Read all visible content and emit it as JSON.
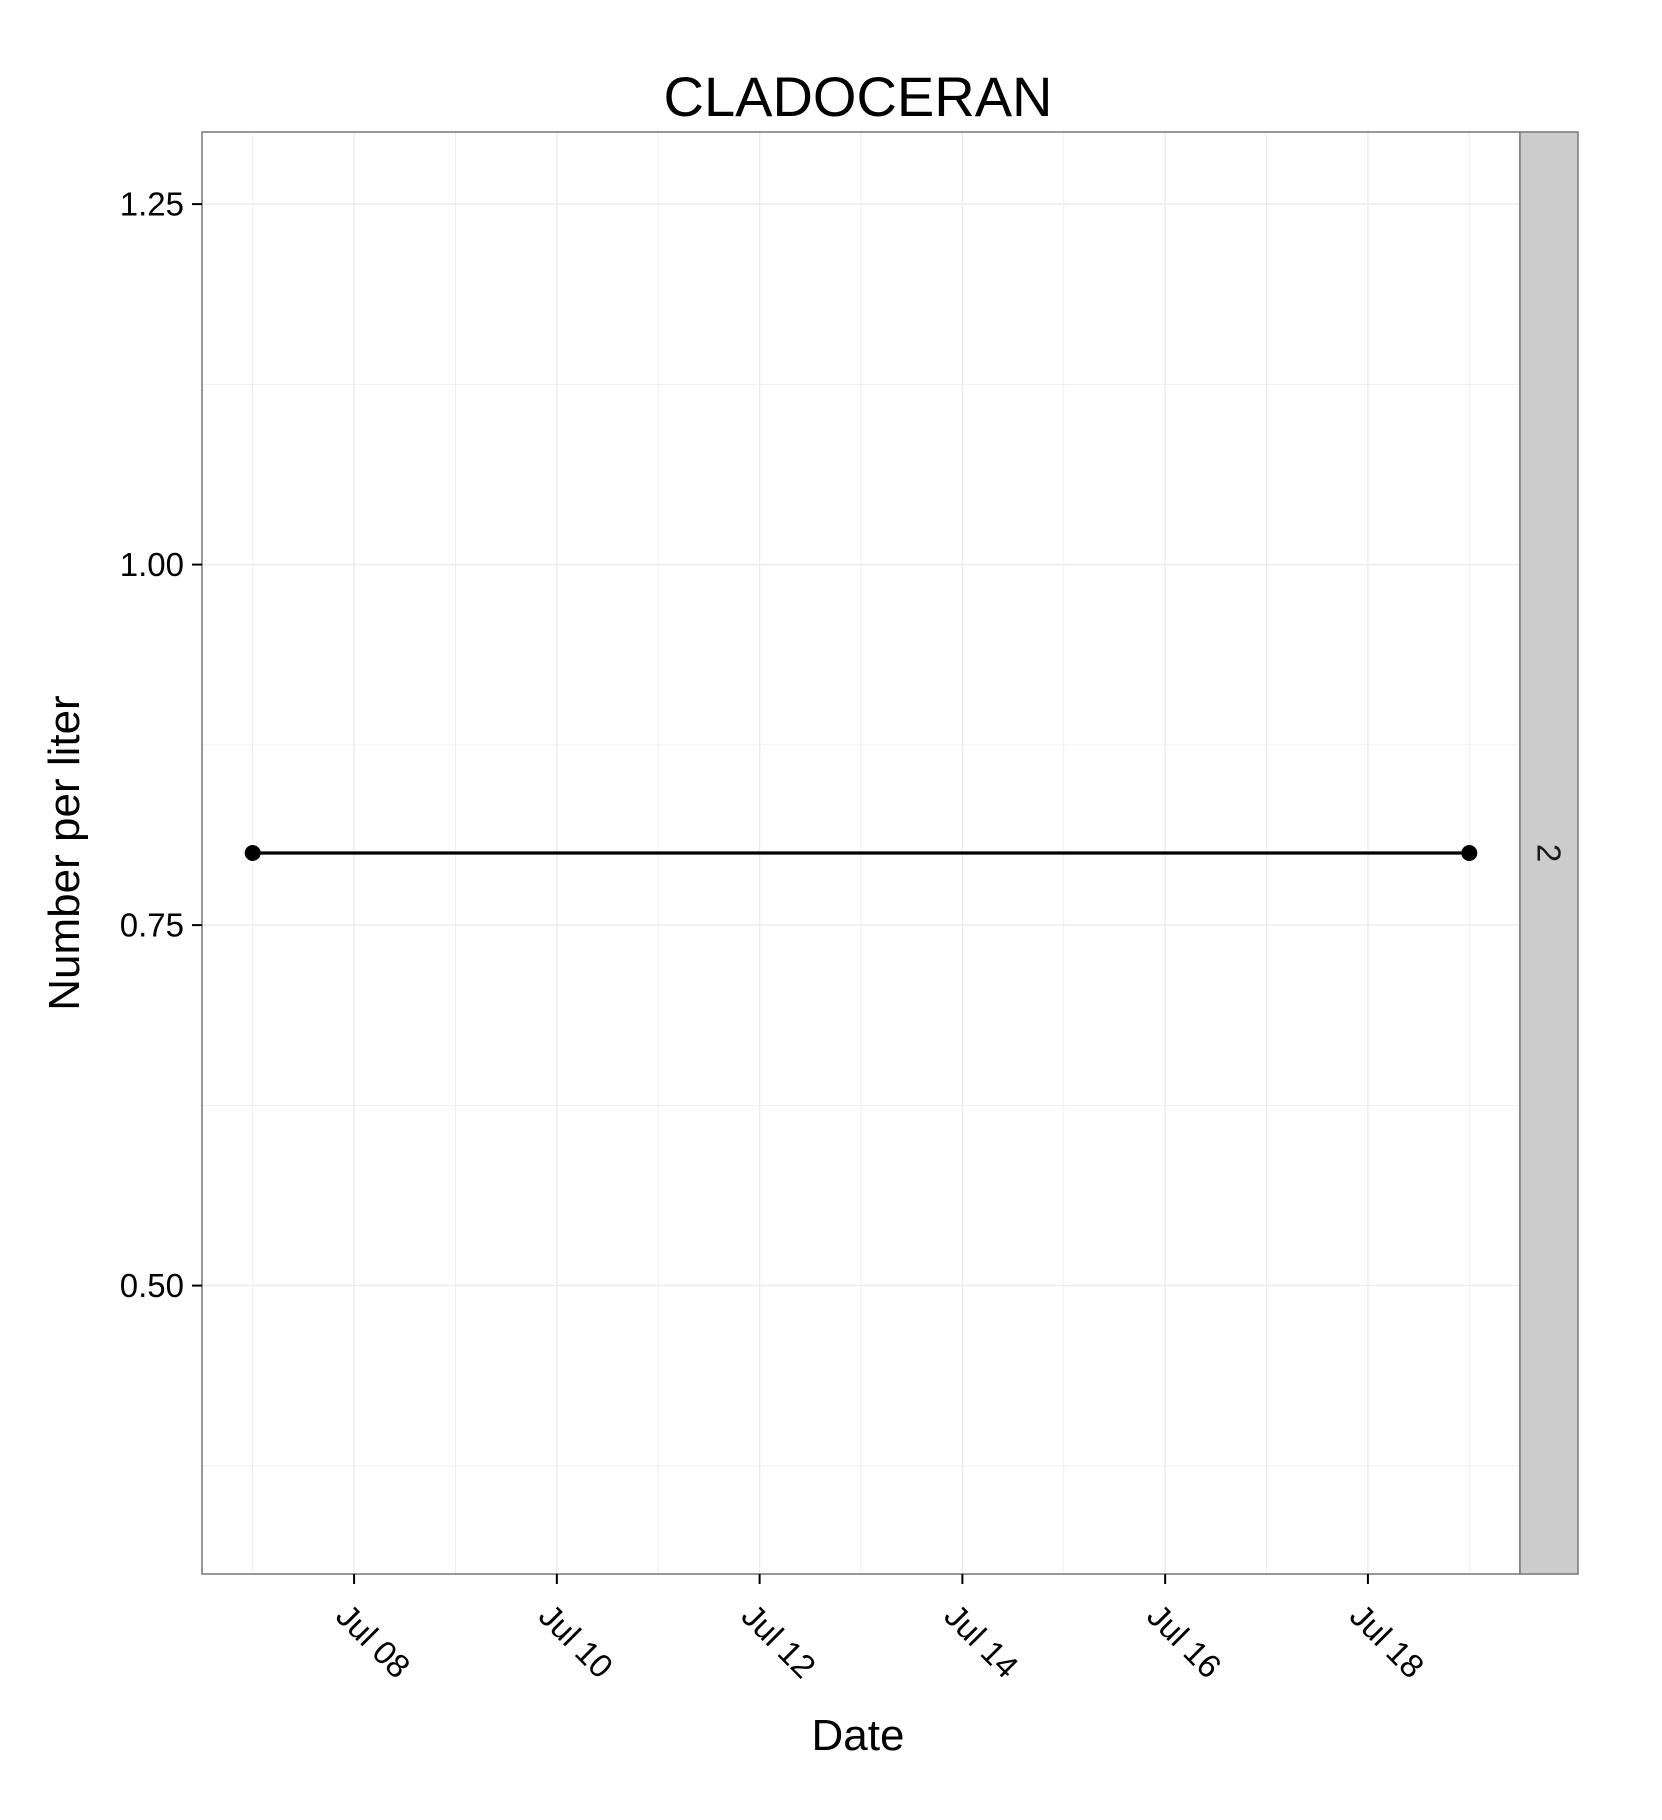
{
  "chart_data": {
    "type": "line",
    "title": "CLADOCERAN",
    "xlabel": "Date",
    "ylabel": "Number per liter",
    "x_type": "date",
    "xlim": [
      "2013-07-06T12:00:00",
      "2013-07-19T12:00:00"
    ],
    "ylim": [
      0.3,
      1.3
    ],
    "x_ticks": [
      {
        "value": "2013-07-08",
        "label": "Jul 08"
      },
      {
        "value": "2013-07-10",
        "label": "Jul 10"
      },
      {
        "value": "2013-07-12",
        "label": "Jul 12"
      },
      {
        "value": "2013-07-14",
        "label": "Jul 14"
      },
      {
        "value": "2013-07-16",
        "label": "Jul 16"
      },
      {
        "value": "2013-07-18",
        "label": "Jul 18"
      }
    ],
    "y_ticks": [
      {
        "value": 0.5,
        "label": "0.50"
      },
      {
        "value": 0.75,
        "label": "0.75"
      },
      {
        "value": 1.0,
        "label": "1.00"
      },
      {
        "value": 1.25,
        "label": "1.25"
      }
    ],
    "facet_label": "2",
    "grid": true,
    "series": [
      {
        "x": [
          "2013-07-07",
          "2013-07-19"
        ],
        "y": [
          0.8,
          0.8
        ],
        "color": "#000000",
        "markers": true
      }
    ],
    "colors": {
      "panel_background": "#ffffff",
      "grid": "#ebebeb",
      "panel_border": "#7f7f7f",
      "strip_background": "#cccccc",
      "line": "#000000"
    }
  }
}
